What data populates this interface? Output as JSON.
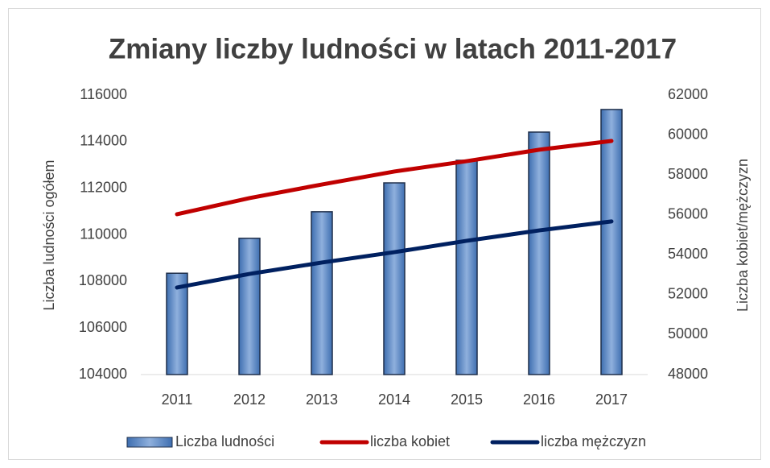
{
  "chart_data": {
    "type": "combo",
    "title": "Zmiany liczby ludności w latach 2011-2017",
    "y_label": "Liczba ludności ogółem",
    "y2_label": "Liczba kobiet/mężczyzn",
    "categories": [
      "2011",
      "2012",
      "2013",
      "2014",
      "2015",
      "2016",
      "2017"
    ],
    "series": [
      {
        "name": "Liczba ludności",
        "type": "bar",
        "axis": "y",
        "color": "#5b8ac8",
        "values": [
          108350,
          109850,
          110990,
          112230,
          113200,
          114410,
          115380
        ]
      },
      {
        "name": "liczba kobiet",
        "type": "line",
        "axis": "y2",
        "color": "#c00000",
        "values": [
          56030,
          56840,
          57520,
          58170,
          58690,
          59260,
          59700
        ]
      },
      {
        "name": "liczba mężczyzn",
        "type": "line",
        "axis": "y2",
        "color": "#002060",
        "values": [
          52360,
          53040,
          53610,
          54130,
          54700,
          55220,
          55670
        ]
      }
    ],
    "ylim": [
      104000,
      116000
    ],
    "yticks": [
      104000,
      106000,
      108000,
      110000,
      112000,
      114000,
      116000
    ],
    "y2lim": [
      48000,
      62000
    ],
    "y2ticks": [
      48000,
      50000,
      52000,
      54000,
      56000,
      58000,
      60000,
      62000
    ],
    "legend": "bottom"
  }
}
